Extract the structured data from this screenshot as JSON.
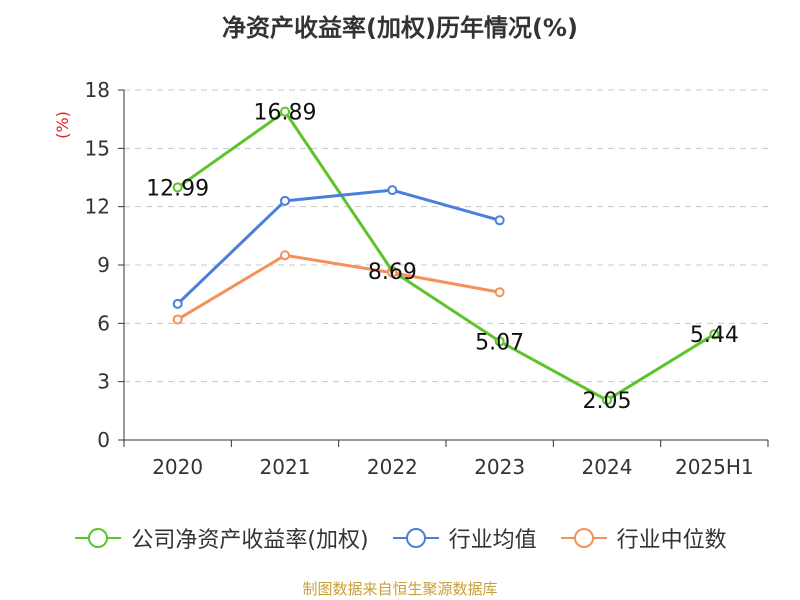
{
  "chart_data": {
    "type": "line",
    "title": "净资产收益率(加权)历年情况(%)",
    "ylabel": "(%)",
    "xlabel": "",
    "categories": [
      "2020",
      "2021",
      "2022",
      "2023",
      "2024",
      "2025H1"
    ],
    "ylim": [
      0,
      18
    ],
    "yticks": [
      0,
      3,
      6,
      9,
      12,
      15,
      18
    ],
    "grid": "horizontal dashed",
    "legend_position": "bottom",
    "series": [
      {
        "name": "公司净资产收益率(加权)",
        "color": "#5cc42a",
        "values": [
          12.99,
          16.89,
          8.69,
          5.07,
          2.05,
          5.44
        ],
        "data_labels": [
          "12.99",
          "16.89",
          "8.69",
          "5.07",
          "2.05",
          "5.44"
        ]
      },
      {
        "name": "行业均值",
        "color": "#4a7fdc",
        "values": [
          7.0,
          12.3,
          12.85,
          11.3,
          null,
          null
        ]
      },
      {
        "name": "行业中位数",
        "color": "#f5905a",
        "values": [
          6.2,
          9.5,
          8.6,
          7.6,
          null,
          null
        ]
      }
    ]
  },
  "footer": {
    "source": "制图数据来自恒生聚源数据库"
  }
}
